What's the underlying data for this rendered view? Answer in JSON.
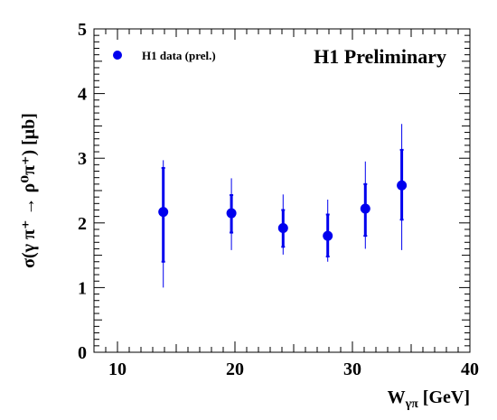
{
  "chart_data": {
    "type": "scatter",
    "title": "H1 Preliminary",
    "xlabel": "W",
    "xlabel_subscript": "γπ",
    "xlabel_unit": "[GeV]",
    "ylabel": "σ(γ π⁺ → ρ⁰π⁺) [μb]",
    "xlim": [
      8,
      40
    ],
    "ylim": [
      0,
      5
    ],
    "x_ticks": [
      10,
      20,
      30,
      40
    ],
    "y_ticks": [
      0,
      1,
      2,
      3,
      4,
      5
    ],
    "x_tick_labels": [
      "10",
      "20",
      "30",
      "40"
    ],
    "y_tick_labels": [
      "0",
      "1",
      "2",
      "3",
      "4",
      "5"
    ],
    "grid": false,
    "legend_position": "top-left",
    "series": [
      {
        "name": "H1 data (prel.)",
        "color": "#0000ee",
        "points": [
          {
            "x": 13.9,
            "y": 2.17,
            "stat_low": 1.4,
            "stat_high": 2.85,
            "tot_low": 1.0,
            "tot_high": 2.97
          },
          {
            "x": 19.7,
            "y": 2.15,
            "stat_low": 1.85,
            "stat_high": 2.43,
            "tot_low": 1.58,
            "tot_high": 2.69
          },
          {
            "x": 24.1,
            "y": 1.92,
            "stat_low": 1.63,
            "stat_high": 2.2,
            "tot_low": 1.51,
            "tot_high": 2.44
          },
          {
            "x": 27.9,
            "y": 1.8,
            "stat_low": 1.48,
            "stat_high": 2.13,
            "tot_low": 1.4,
            "tot_high": 2.36
          },
          {
            "x": 31.1,
            "y": 2.22,
            "stat_low": 1.8,
            "stat_high": 2.6,
            "tot_low": 1.6,
            "tot_high": 2.95
          },
          {
            "x": 34.2,
            "y": 2.58,
            "stat_low": 2.05,
            "stat_high": 3.13,
            "tot_low": 1.58,
            "tot_high": 3.53
          }
        ]
      }
    ]
  }
}
